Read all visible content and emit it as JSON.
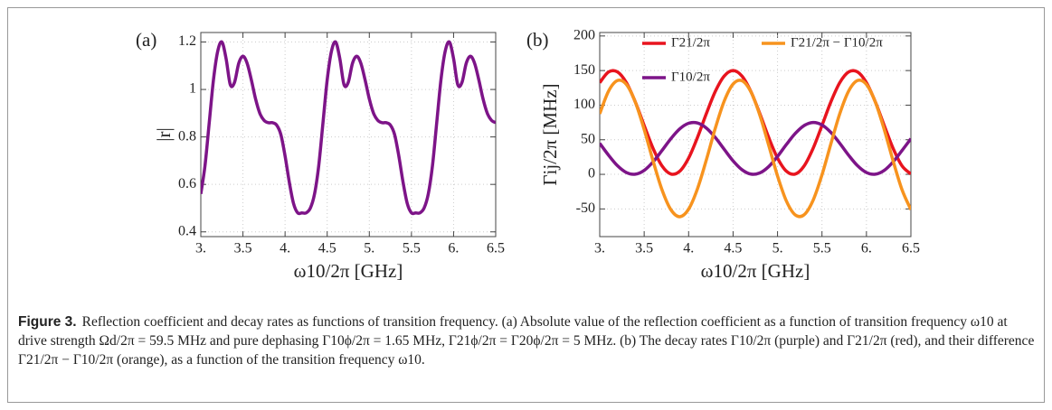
{
  "chart_data": [
    {
      "type": "line",
      "panel": "(a)",
      "x_label": "ω10/2π [GHz]",
      "y_label": "|r|",
      "color": "#7d1488",
      "grid": true,
      "xlim": [
        3,
        6.5
      ],
      "ylim": [
        0.38,
        1.24
      ],
      "xticks": [
        {
          "value": 3,
          "label": "3."
        },
        3.5,
        {
          "value": 4,
          "label": "4."
        },
        4.5,
        {
          "value": 5,
          "label": "5."
        },
        5.5,
        {
          "value": 6,
          "label": "6."
        },
        6.5
      ],
      "yticks": [
        0.4,
        0.6,
        0.8,
        1,
        1.2
      ],
      "x": [
        3,
        3.05,
        3.1,
        3.15,
        3.2,
        3.25,
        3.3,
        3.35,
        3.4,
        3.45,
        3.5,
        3.55,
        3.6,
        3.65,
        3.7,
        3.75,
        3.8,
        3.85,
        3.9,
        3.95,
        4,
        4.05,
        4.1,
        4.15,
        4.2,
        4.25,
        4.3,
        4.35,
        4.4,
        4.45,
        4.5,
        4.55,
        4.6,
        4.65,
        4.7,
        4.75,
        4.8,
        4.85,
        4.9,
        4.95,
        5,
        5.05,
        5.1,
        5.15,
        5.2,
        5.25,
        5.3,
        5.35,
        5.4,
        5.45,
        5.5,
        5.55,
        5.6,
        5.65,
        5.7,
        5.75,
        5.8,
        5.85,
        5.9,
        5.95,
        6,
        6.05,
        6.1,
        6.15,
        6.2,
        6.25,
        6.3,
        6.35,
        6.4,
        6.45,
        6.5
      ],
      "values": [
        0.56,
        0.68,
        0.86,
        1.04,
        1.16,
        1.2,
        1.13,
        1.02,
        1.03,
        1.11,
        1.14,
        1.11,
        1.04,
        0.96,
        0.9,
        0.87,
        0.86,
        0.86,
        0.85,
        0.81,
        0.72,
        0.61,
        0.52,
        0.48,
        0.48,
        0.48,
        0.5,
        0.56,
        0.68,
        0.86,
        1.04,
        1.16,
        1.2,
        1.13,
        1.02,
        1.03,
        1.11,
        1.14,
        1.11,
        1.04,
        0.96,
        0.9,
        0.87,
        0.86,
        0.86,
        0.85,
        0.81,
        0.72,
        0.61,
        0.52,
        0.48,
        0.48,
        0.48,
        0.5,
        0.56,
        0.68,
        0.86,
        1.04,
        1.16,
        1.2,
        1.13,
        1.02,
        1.03,
        1.11,
        1.14,
        1.11,
        1.04,
        0.96,
        0.9,
        0.87,
        0.86
      ]
    },
    {
      "type": "line",
      "panel": "(b)",
      "x_label": "ω10/2π [GHz]",
      "y_label": "Γij/2π [MHz]",
      "grid": true,
      "legend": "top",
      "xlim": [
        3,
        6.5
      ],
      "ylim": [
        -90,
        205
      ],
      "xticks": [
        {
          "value": 3,
          "label": "3."
        },
        3.5,
        {
          "value": 4,
          "label": "4."
        },
        4.5,
        {
          "value": 5,
          "label": "5."
        },
        5.5,
        {
          "value": 6,
          "label": "6."
        },
        6.5
      ],
      "yticks": [
        -50,
        0,
        50,
        100,
        150,
        200
      ],
      "x": [
        3,
        3.1,
        3.2,
        3.3,
        3.4,
        3.5,
        3.6,
        3.7,
        3.8,
        3.9,
        4,
        4.1,
        4.2,
        4.3,
        4.4,
        4.5,
        4.6,
        4.7,
        4.8,
        4.9,
        5,
        5.1,
        5.2,
        5.3,
        5.4,
        5.5,
        5.6,
        5.7,
        5.8,
        5.9,
        6,
        6.1,
        6.2,
        6.3,
        6.4,
        6.5
      ],
      "series": [
        {
          "name": "Γ21/2π",
          "color": "#e8141e",
          "values": [
            132.5,
            148,
            148,
            132.5,
            104.7,
            70.6,
            37.5,
            12.3,
            0.5,
            4.5,
            23.5,
            53.5,
            88,
            119.8,
            142,
            150,
            142,
            119.8,
            88,
            53.5,
            23.5,
            4.5,
            0.5,
            12.3,
            37.5,
            70.6,
            104.7,
            132.5,
            148,
            148,
            132.5,
            104.7,
            70.6,
            37.5,
            12.3,
            0.5
          ]
        },
        {
          "name": "Γ10/2π",
          "color": "#7d1488",
          "values": [
            44.9,
            27.6,
            12.4,
            2.6,
            0.2,
            5.7,
            18,
            34.4,
            51.5,
            65.7,
            73.8,
            74.2,
            66.8,
            53.2,
            36.2,
            19.5,
            6.7,
            0.4,
            2,
            11.1,
            25.9,
            43.2,
            59.2,
            70.6,
            75,
            71.4,
            60.6,
            44.9,
            27.6,
            12.4,
            2.6,
            0.2,
            5.7,
            18,
            34.4,
            51.5
          ]
        },
        {
          "name": "Γ21/2π − Γ10/2π",
          "color": "#f7931e",
          "values": [
            87.6,
            120.4,
            135.6,
            129.9,
            104.5,
            64.9,
            19.5,
            -22.1,
            -51,
            -61.2,
            -50.3,
            -20.7,
            21.2,
            66.6,
            105.8,
            130.5,
            135.3,
            119.4,
            86,
            42.4,
            -2.4,
            -38.7,
            -58.7,
            -58.3,
            -37.5,
            -0.8,
            44.1,
            87.6,
            120.4,
            135.6,
            129.9,
            104.5,
            64.9,
            19.5,
            -22.1,
            -51
          ]
        }
      ]
    }
  ],
  "caption": {
    "label": "Figure 3.",
    "text": "Reflection coefficient and decay rates as functions of transition frequency. (a) Absolute value of the reflection coefficient as a function of transition frequency ω10 at drive strength Ωd/2π = 59.5 MHz and pure dephasing Γ10ϕ/2π = 1.65 MHz, Γ21ϕ/2π = Γ20ϕ/2π = 5 MHz. (b) The decay rates Γ10/2π (purple) and Γ21/2π (red), and their difference Γ21/2π − Γ10/2π (orange), as a function of the transition frequency ω10."
  }
}
